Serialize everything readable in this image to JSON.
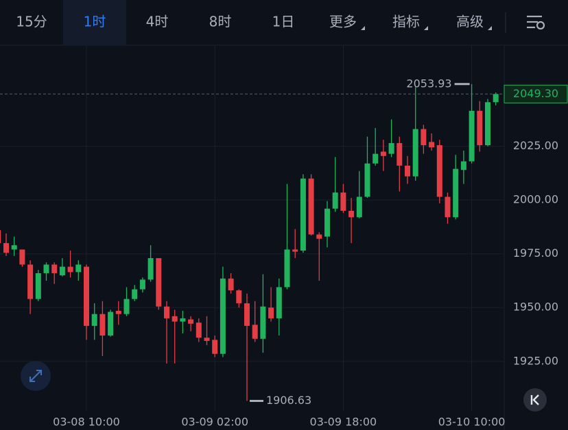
{
  "toolbar": {
    "tabs": [
      "15分",
      "1时",
      "4时",
      "8时",
      "1日",
      "更多",
      "指标",
      "高级"
    ],
    "active": 1
  },
  "chart_data": {
    "type": "candlestick",
    "categories": [
      null,
      null,
      null,
      null,
      null,
      null,
      null,
      null,
      null,
      null,
      null,
      "03-08 10:00",
      null,
      null,
      null,
      null,
      null,
      null,
      null,
      null,
      null,
      null,
      null,
      null,
      null,
      null,
      null,
      "03-09 02:00",
      null,
      null,
      null,
      null,
      null,
      null,
      null,
      null,
      null,
      null,
      null,
      null,
      null,
      null,
      null,
      "03-09 18:00",
      null,
      null,
      null,
      null,
      null,
      null,
      null,
      null,
      null,
      null,
      null,
      null,
      null,
      null,
      null,
      "03-10 10:00",
      null,
      null,
      null
    ],
    "open": [
      1986,
      1980,
      1977,
      1977,
      1970,
      1954,
      1966,
      1970,
      1965,
      1969,
      1966.5,
      1969,
      1941.5,
      1947,
      1937,
      1948.5,
      1947,
      1954,
      1958.5,
      1963,
      1973,
      1950.5,
      1946,
      1943.5,
      1944.5,
      1943,
      1936,
      1935,
      1928.5,
      1963.5,
      1958,
      1952,
      1942,
      1935.5,
      1950,
      1945,
      1959.5,
      1977,
      1976.5,
      2010,
      1984,
      1983,
      1996,
      2003.5,
      1995,
      1992,
      2001.5,
      2017,
      2022.5,
      2021.5,
      2026.5,
      2016,
      2011,
      2033,
      2027,
      2025.5,
      2001.5,
      1992,
      2014,
      2018,
      2041.5,
      2025.5,
      2045.5
    ],
    "high": [
      1988,
      1984.5,
      1983,
      1977,
      1972,
      1967.5,
      1971,
      1971,
      1973,
      1976.5,
      1972,
      1970,
      1952,
      1953,
      1949,
      1953,
      1959.5,
      1960.5,
      1964,
      1979,
      1973,
      1953,
      1949,
      1948.5,
      1946,
      1945,
      1946,
      1937,
      1969,
      1966,
      1958.5,
      1956.5,
      1953,
      1965.5,
      1959.5,
      1963.5,
      2007.5,
      1986.5,
      2012,
      2012,
      1985,
      1999.5,
      2020,
      2007.5,
      2001,
      2013.5,
      2029.5,
      2033.5,
      2028,
      2037.5,
      2029.5,
      2020.5,
      2052.5,
      2035,
      2031,
      2028,
      2003.5,
      2021,
      2023,
      2053.93,
      2046,
      2047,
      2050
    ],
    "low": [
      1978,
      1974,
      1974,
      1969,
      1947,
      1953,
      1962.5,
      1961,
      1964.5,
      1964,
      1962.5,
      1935,
      1935,
      1927.5,
      1936.5,
      1942,
      1946,
      1953,
      1957,
      1962,
      1949,
      1924,
      1924,
      1938,
      1939,
      1934,
      1932.5,
      1927,
      1927,
      1956.5,
      1950,
      1906.63,
      1934,
      1929,
      1943.5,
      1937,
      1958.5,
      1973,
      1975.5,
      1983.5,
      1962.5,
      1978,
      1994.5,
      1994,
      1980,
      1991.5,
      2001,
      2016,
      2013.5,
      2020,
      2004,
      2007.5,
      2009,
      2021.5,
      2023,
      1998.5,
      1989,
      1991,
      2007.5,
      2017,
      2022.5,
      2025,
      2044
    ],
    "close": [
      1980,
      1975.5,
      1979,
      1970,
      1954,
      1966,
      1970,
      1966,
      1969,
      1966.5,
      1970,
      1941.5,
      1947,
      1937,
      1948,
      1947,
      1954,
      1958.5,
      1963,
      1973,
      1950.5,
      1945,
      1943.5,
      1945,
      1942.5,
      1936,
      1934.5,
      1928.5,
      1963.5,
      1958,
      1952,
      1941.5,
      1935.5,
      1950.5,
      1945,
      1959.5,
      1977,
      1976,
      2010,
      1984,
      1982,
      1996,
      2003.5,
      1995,
      1992,
      2001.5,
      2017,
      2021.5,
      2020.5,
      2026.5,
      2016,
      2011,
      2033,
      2025.5,
      2024.5,
      2001.5,
      1992,
      2014.5,
      2018,
      2041.5,
      2025.5,
      2045.5,
      2049.3
    ],
    "up_color": "#22b35e",
    "down_color": "#e33e46",
    "ylim": [
      1902,
      2072
    ],
    "yticks": [
      {
        "value": 1925,
        "label": "1925.00"
      },
      {
        "value": 1950,
        "label": "1950.00"
      },
      {
        "value": 1975,
        "label": "1975.00"
      },
      {
        "value": 2000,
        "label": "2000.00"
      },
      {
        "value": 2025,
        "label": "2025.00"
      }
    ],
    "current_price": {
      "value": 2049.3,
      "label": "2049.30"
    },
    "grid": true
  }
}
